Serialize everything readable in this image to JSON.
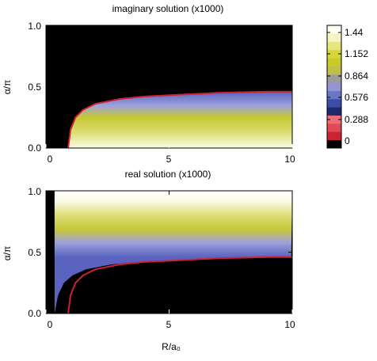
{
  "colors": {
    "frame": "#000000",
    "contour": "#cc2233",
    "scale": [
      "#000000",
      "#cc2233",
      "#e04a55",
      "#ee6b78",
      "#1d2a6b",
      "#3a4ea6",
      "#6b76c9",
      "#9396d6",
      "#9b9b9b",
      "#bfc04a",
      "#c9c92a",
      "#d6d63a",
      "#e6e67a",
      "#f4f4c0",
      "#fffff4"
    ]
  },
  "chart_data": [
    {
      "type": "heatmap",
      "title": "imaginary solution (x1000)",
      "xlabel": "",
      "ylabel": "α/π",
      "xlim": [
        0,
        10
      ],
      "ylim": [
        0,
        1.0
      ],
      "xticks": [
        "0",
        "5",
        "10"
      ],
      "yticks": [
        "0.0",
        "0.5",
        "1.0"
      ],
      "region": "below",
      "boundary": {
        "R": [
          0.9,
          1.0,
          1.2,
          1.5,
          2.0,
          3.0,
          4.0,
          5.0,
          6.0,
          7.0,
          8.0,
          9.0,
          10.0
        ],
        "alpha": [
          0.0,
          0.15,
          0.25,
          0.31,
          0.36,
          0.4,
          0.42,
          0.43,
          0.44,
          0.45,
          0.455,
          0.46,
          0.46
        ]
      }
    },
    {
      "type": "heatmap",
      "title": "real solution (x1000)",
      "xlabel": "R/a₀",
      "ylabel": "α/π",
      "xlim": [
        0,
        10
      ],
      "ylim": [
        0,
        1.0
      ],
      "xticks": [
        "0",
        "5",
        "10"
      ],
      "yticks": [
        "0.0",
        "0.5",
        "1.0"
      ],
      "region": "above",
      "boundary": {
        "R": [
          0.9,
          1.0,
          1.2,
          1.5,
          2.0,
          3.0,
          4.0,
          5.0,
          6.0,
          7.0,
          8.0,
          9.0,
          10.0
        ],
        "alpha": [
          0.0,
          0.15,
          0.25,
          0.31,
          0.36,
          0.4,
          0.42,
          0.43,
          0.44,
          0.45,
          0.455,
          0.46,
          0.46
        ]
      }
    }
  ],
  "colorbar": {
    "labels": [
      "1.44",
      "1.152",
      "0.864",
      "0.576",
      "0.288",
      "0"
    ]
  }
}
